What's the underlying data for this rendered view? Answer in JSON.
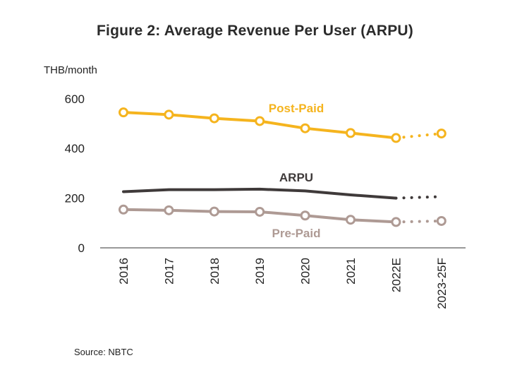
{
  "chart_data": {
    "type": "line",
    "title": "Figure 2: Average Revenue Per User (ARPU)",
    "ylabel": "THB/month",
    "source": "Source: NBTC",
    "categories": [
      "2016",
      "2017",
      "2018",
      "2019",
      "2020",
      "2021",
      "2022E",
      "2023-25F"
    ],
    "yticks": [
      "0",
      "200",
      "400",
      "600"
    ],
    "ylim": [
      0,
      600
    ],
    "grid": false,
    "series": [
      {
        "name": "Post-Paid",
        "color": "#F5B41E",
        "markers": true,
        "values": [
          545,
          536,
          521,
          510,
          481,
          462,
          442,
          460
        ]
      },
      {
        "name": "ARPU",
        "color": "#3F3A3A",
        "markers": false,
        "values": [
          226,
          234,
          234,
          236,
          229,
          213,
          200,
          206
        ]
      },
      {
        "name": "Pre-Paid",
        "color": "#AE9A94",
        "markers": true,
        "values": [
          154,
          151,
          146,
          145,
          130,
          113,
          104,
          108
        ]
      }
    ],
    "projection_from_index": 6
  }
}
